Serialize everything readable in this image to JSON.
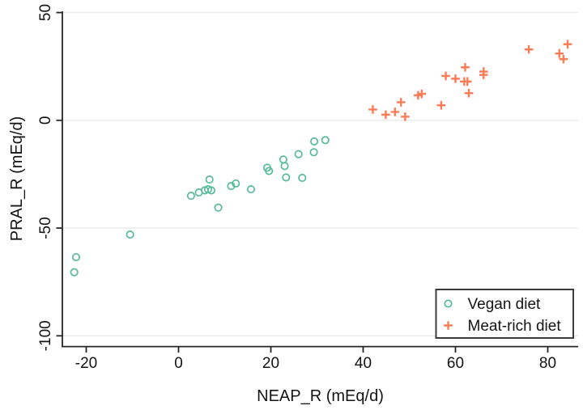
{
  "chart_data": {
    "type": "scatter",
    "title": "",
    "xlabel": "NEAP_R (mEq/d)",
    "ylabel": "PRAL_R (mEq/d)",
    "xlim": [
      -28,
      87
    ],
    "ylim": [
      -105,
      52
    ],
    "xticks": [
      -20,
      0,
      20,
      40,
      60,
      80
    ],
    "yticks": [
      50,
      0,
      -50,
      -100
    ],
    "grid": "horizontal-only",
    "legend_position": "bottom-right",
    "legend_border": true,
    "series": [
      {
        "name": "Vegan diet",
        "marker": "open-circle",
        "color": "#56bb97",
        "points": [
          [
            -22.6,
            -70.5
          ],
          [
            -22.2,
            -63.5
          ],
          [
            -10.5,
            -53
          ],
          [
            2.7,
            -35
          ],
          [
            4.4,
            -33.5
          ],
          [
            5.7,
            -32.5
          ],
          [
            6.4,
            -32
          ],
          [
            7.1,
            -32.5
          ],
          [
            6.7,
            -27.5
          ],
          [
            8.6,
            -40.5
          ],
          [
            11.4,
            -30.5
          ],
          [
            12.4,
            -29.3
          ],
          [
            15.7,
            -32
          ],
          [
            19.2,
            -22
          ],
          [
            19.6,
            -23.5
          ],
          [
            22.7,
            -18.2
          ],
          [
            23.0,
            -21.2
          ],
          [
            23.3,
            -26.5
          ],
          [
            26.0,
            -15.7
          ],
          [
            26.8,
            -26.7
          ],
          [
            29.3,
            -14.8
          ],
          [
            29.4,
            -9.8
          ],
          [
            31.8,
            -9.2
          ]
        ]
      },
      {
        "name": "Meat-rich diet",
        "marker": "plus",
        "color": "#f97c55",
        "points": [
          [
            42.1,
            5.0
          ],
          [
            44.9,
            2.6
          ],
          [
            46.9,
            3.9
          ],
          [
            48.2,
            8.4
          ],
          [
            49.1,
            1.7
          ],
          [
            51.9,
            11.6
          ],
          [
            52.7,
            12.3
          ],
          [
            56.9,
            7.0
          ],
          [
            57.9,
            20.6
          ],
          [
            60.0,
            19.3
          ],
          [
            61.9,
            18.0
          ],
          [
            62.1,
            24.6
          ],
          [
            62.6,
            18.0
          ],
          [
            62.9,
            12.6
          ],
          [
            66.1,
            21.1
          ],
          [
            66.1,
            22.6
          ],
          [
            75.9,
            32.9
          ],
          [
            82.5,
            31.0
          ],
          [
            83.4,
            28.4
          ],
          [
            84.3,
            35.3
          ]
        ]
      }
    ],
    "colors": {
      "vegan": "#56bb97",
      "meat": "#f97c55",
      "gridline": "#e9e9e9",
      "axis": "#262626",
      "text": "#141414"
    }
  }
}
